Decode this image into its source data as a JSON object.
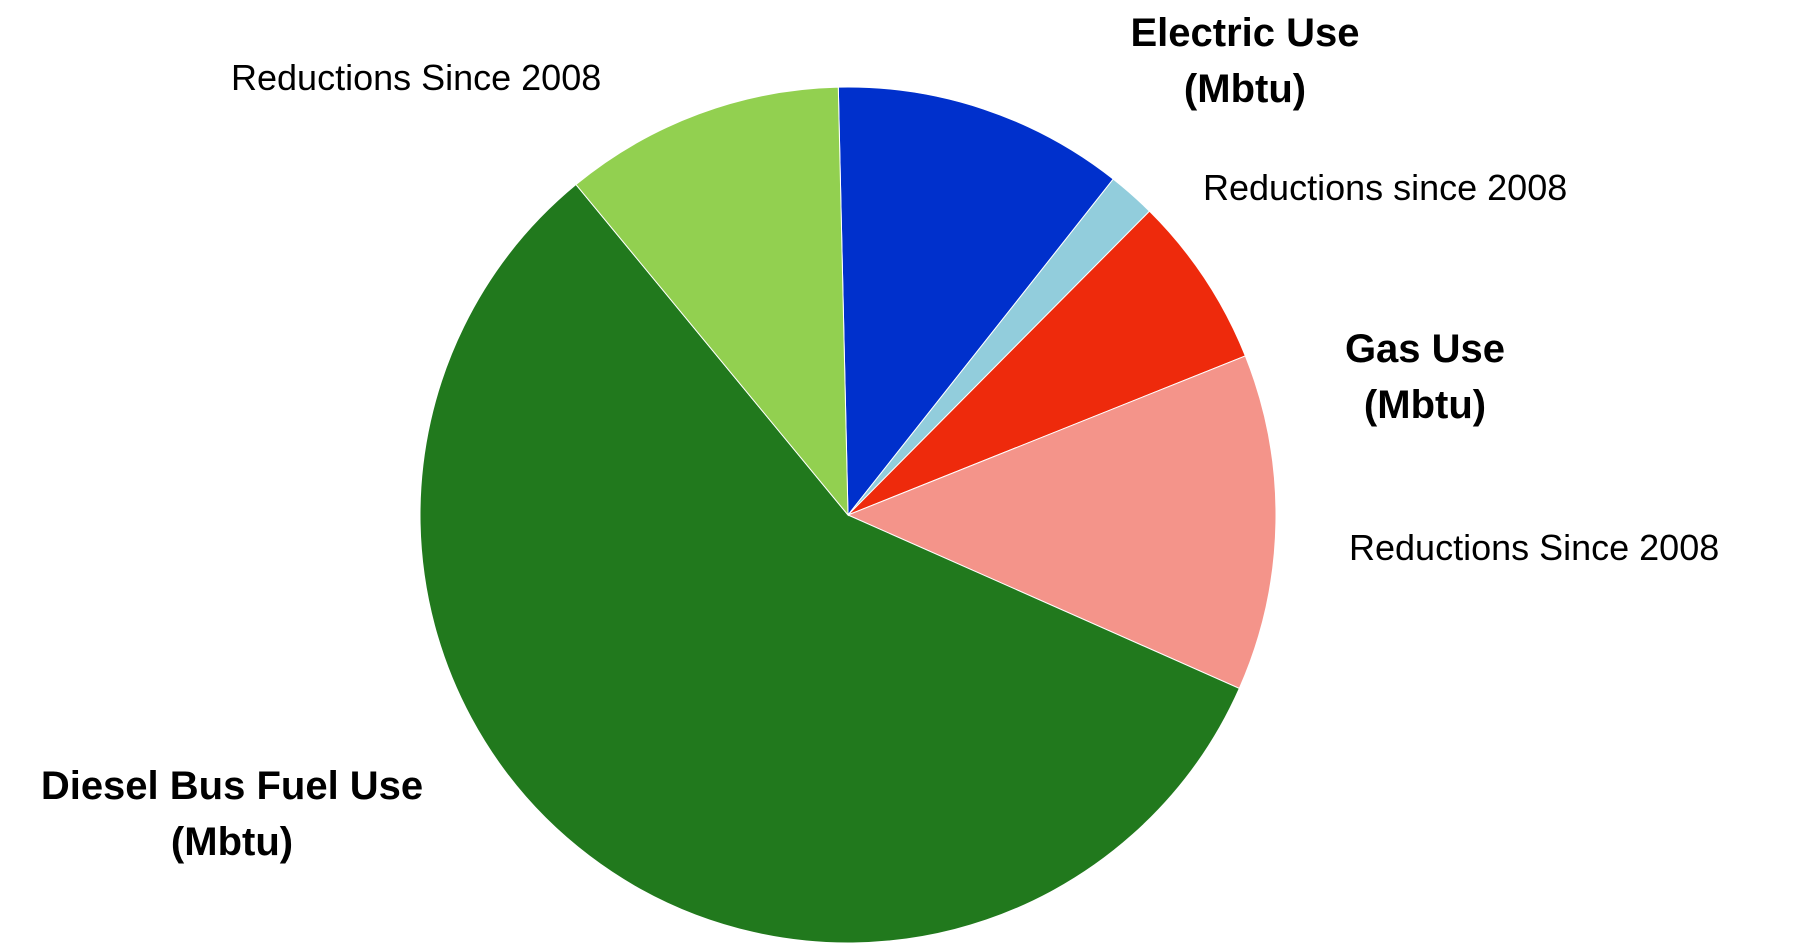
{
  "chart_data": {
    "type": "pie",
    "title": "",
    "start_angle_deg": -1.3,
    "direction": "clockwise",
    "slices": [
      {
        "label": "Electric Use (Mbtu)",
        "lines": [
          "Electric Use",
          "(Mbtu)"
        ],
        "bold": true,
        "value": 11.0,
        "color": "#0030CC"
      },
      {
        "label": "Reductions since 2008",
        "lines": [
          "Reductions since 2008"
        ],
        "bold": false,
        "value": 1.8,
        "color": "#92CDDC"
      },
      {
        "label": "Gas Use (Mbtu)",
        "lines": [
          "Gas Use",
          "(Mbtu)"
        ],
        "bold": true,
        "value": 6.5,
        "color": "#EE2A0C"
      },
      {
        "label": "Reductions Since 2008",
        "lines": [
          "Reductions Since 2008"
        ],
        "bold": false,
        "value": 12.7,
        "color": "#F4948A"
      },
      {
        "label": "Diesel Bus Fuel Use (Mbtu)",
        "lines": [
          "Diesel Bus Fuel Use",
          "(Mbtu)"
        ],
        "bold": true,
        "value": 57.4,
        "color": "#21791D"
      },
      {
        "label": "Reductions Since 2008",
        "lines": [
          "Reductions Since 2008"
        ],
        "bold": false,
        "value": 10.6,
        "color": "#92D050"
      }
    ]
  }
}
